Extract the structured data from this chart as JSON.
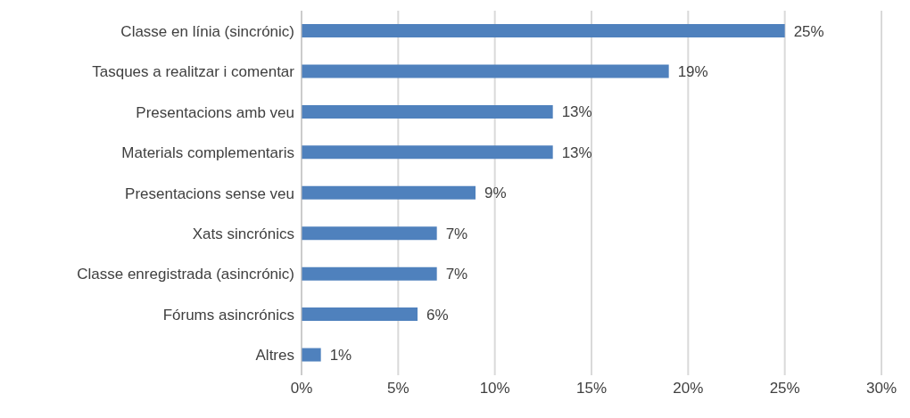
{
  "chart_data": {
    "type": "bar",
    "orientation": "horizontal",
    "categories": [
      "Classe en línia (sincrónic)",
      "Tasques a realitzar i comentar",
      "Presentacions amb veu",
      "Materials complementaris",
      "Presentacions sense veu",
      "Xats sincrónics",
      "Classe enregistrada (asincrónic)",
      "Fórums asincrónics",
      "Altres"
    ],
    "values": [
      25,
      19,
      13,
      13,
      9,
      7,
      7,
      6,
      1
    ],
    "value_labels": [
      "25%",
      "19%",
      "13%",
      "13%",
      "9%",
      "7%",
      "7%",
      "6%",
      "1%"
    ],
    "color": "#4f81bd",
    "xlim": [
      0,
      30
    ],
    "xticks": [
      {
        "value": 0,
        "label": "0%"
      },
      {
        "value": 5,
        "label": "5%"
      },
      {
        "value": 10,
        "label": "10%"
      },
      {
        "value": 15,
        "label": "15%"
      },
      {
        "value": 20,
        "label": "20%"
      },
      {
        "value": 25,
        "label": "25%"
      },
      {
        "value": 30,
        "label": "30%"
      }
    ],
    "grid": "x"
  }
}
